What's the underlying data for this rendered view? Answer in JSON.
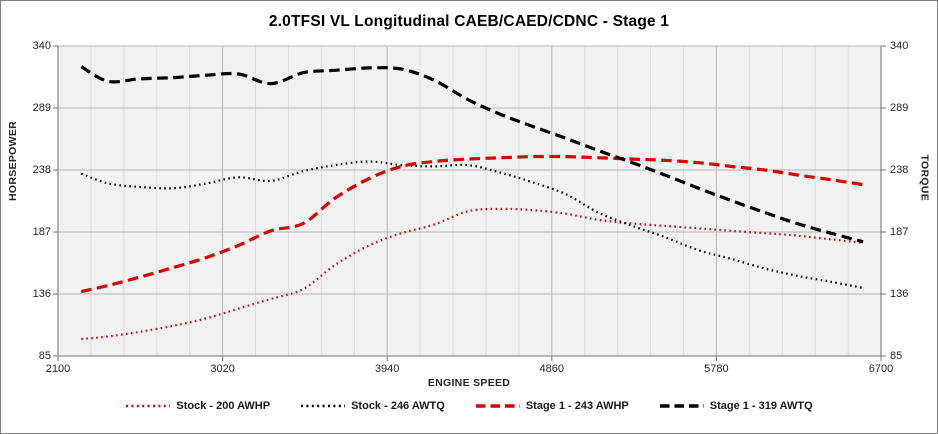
{
  "chart_data": {
    "type": "line",
    "title": "2.0TFSI VL Longitudinal CAEB/CAED/CDNC - Stage 1",
    "xlabel": "ENGINE SPEED",
    "ylabel_left": "HORSEPOWER",
    "ylabel_right": "TORQUE",
    "xlim": [
      2100,
      6700
    ],
    "ylim": [
      85,
      340
    ],
    "x_ticks": [
      2100,
      3020,
      3940,
      4860,
      5780,
      6700
    ],
    "y_ticks": [
      85,
      136,
      187,
      238,
      289,
      340
    ],
    "x_minor_gridline_step": 184,
    "grid": true,
    "legend_position": "bottom",
    "x": [
      2230,
      2380,
      2560,
      2750,
      2930,
      3110,
      3290,
      3470,
      3650,
      3840,
      4020,
      4200,
      4390,
      4570,
      4750,
      4940,
      5120,
      5310,
      5490,
      5680,
      5860,
      6050,
      6230,
      6420,
      6600
    ],
    "series": [
      {
        "name": "Stock - 200 AWHP",
        "color": "#dd0000",
        "style": "dotted",
        "values": [
          99,
          101,
          105,
          110,
          116,
          124,
          132,
          140,
          160,
          176,
          186,
          193,
          204,
          206,
          205,
          202,
          197,
          194,
          192,
          190,
          188,
          186,
          184,
          181,
          178
        ]
      },
      {
        "name": "Stock - 246 AWTQ",
        "color": "#000000",
        "style": "dotted",
        "values": [
          235,
          227,
          224,
          223,
          227,
          232,
          229,
          237,
          242,
          245,
          242,
          241,
          242,
          236,
          228,
          218,
          203,
          192,
          183,
          172,
          165,
          157,
          151,
          146,
          141
        ]
      },
      {
        "name": "Stage 1 - 243 AWHP",
        "color": "#dd0000",
        "style": "dashed",
        "values": [
          138,
          143,
          150,
          158,
          166,
          176,
          188,
          194,
          215,
          231,
          241,
          245,
          247,
          248,
          249,
          249,
          248,
          247,
          246,
          244,
          241,
          238,
          234,
          230,
          226
        ]
      },
      {
        "name": "Stage 1 - 319 AWTQ",
        "color": "#000000",
        "style": "dashed",
        "values": [
          323,
          311,
          313,
          314,
          316,
          317,
          309,
          318,
          320,
          322,
          321,
          312,
          296,
          284,
          274,
          264,
          254,
          244,
          234,
          223,
          213,
          203,
          194,
          186,
          179
        ]
      }
    ]
  },
  "colors": {
    "plot_bg": "#f1f1f1",
    "grid_minor": "#dcdcdc",
    "grid_major": "#b5b5b5",
    "axis_line": "#8c8c8c",
    "red_series": "#dd0000",
    "black_series": "#000000"
  }
}
